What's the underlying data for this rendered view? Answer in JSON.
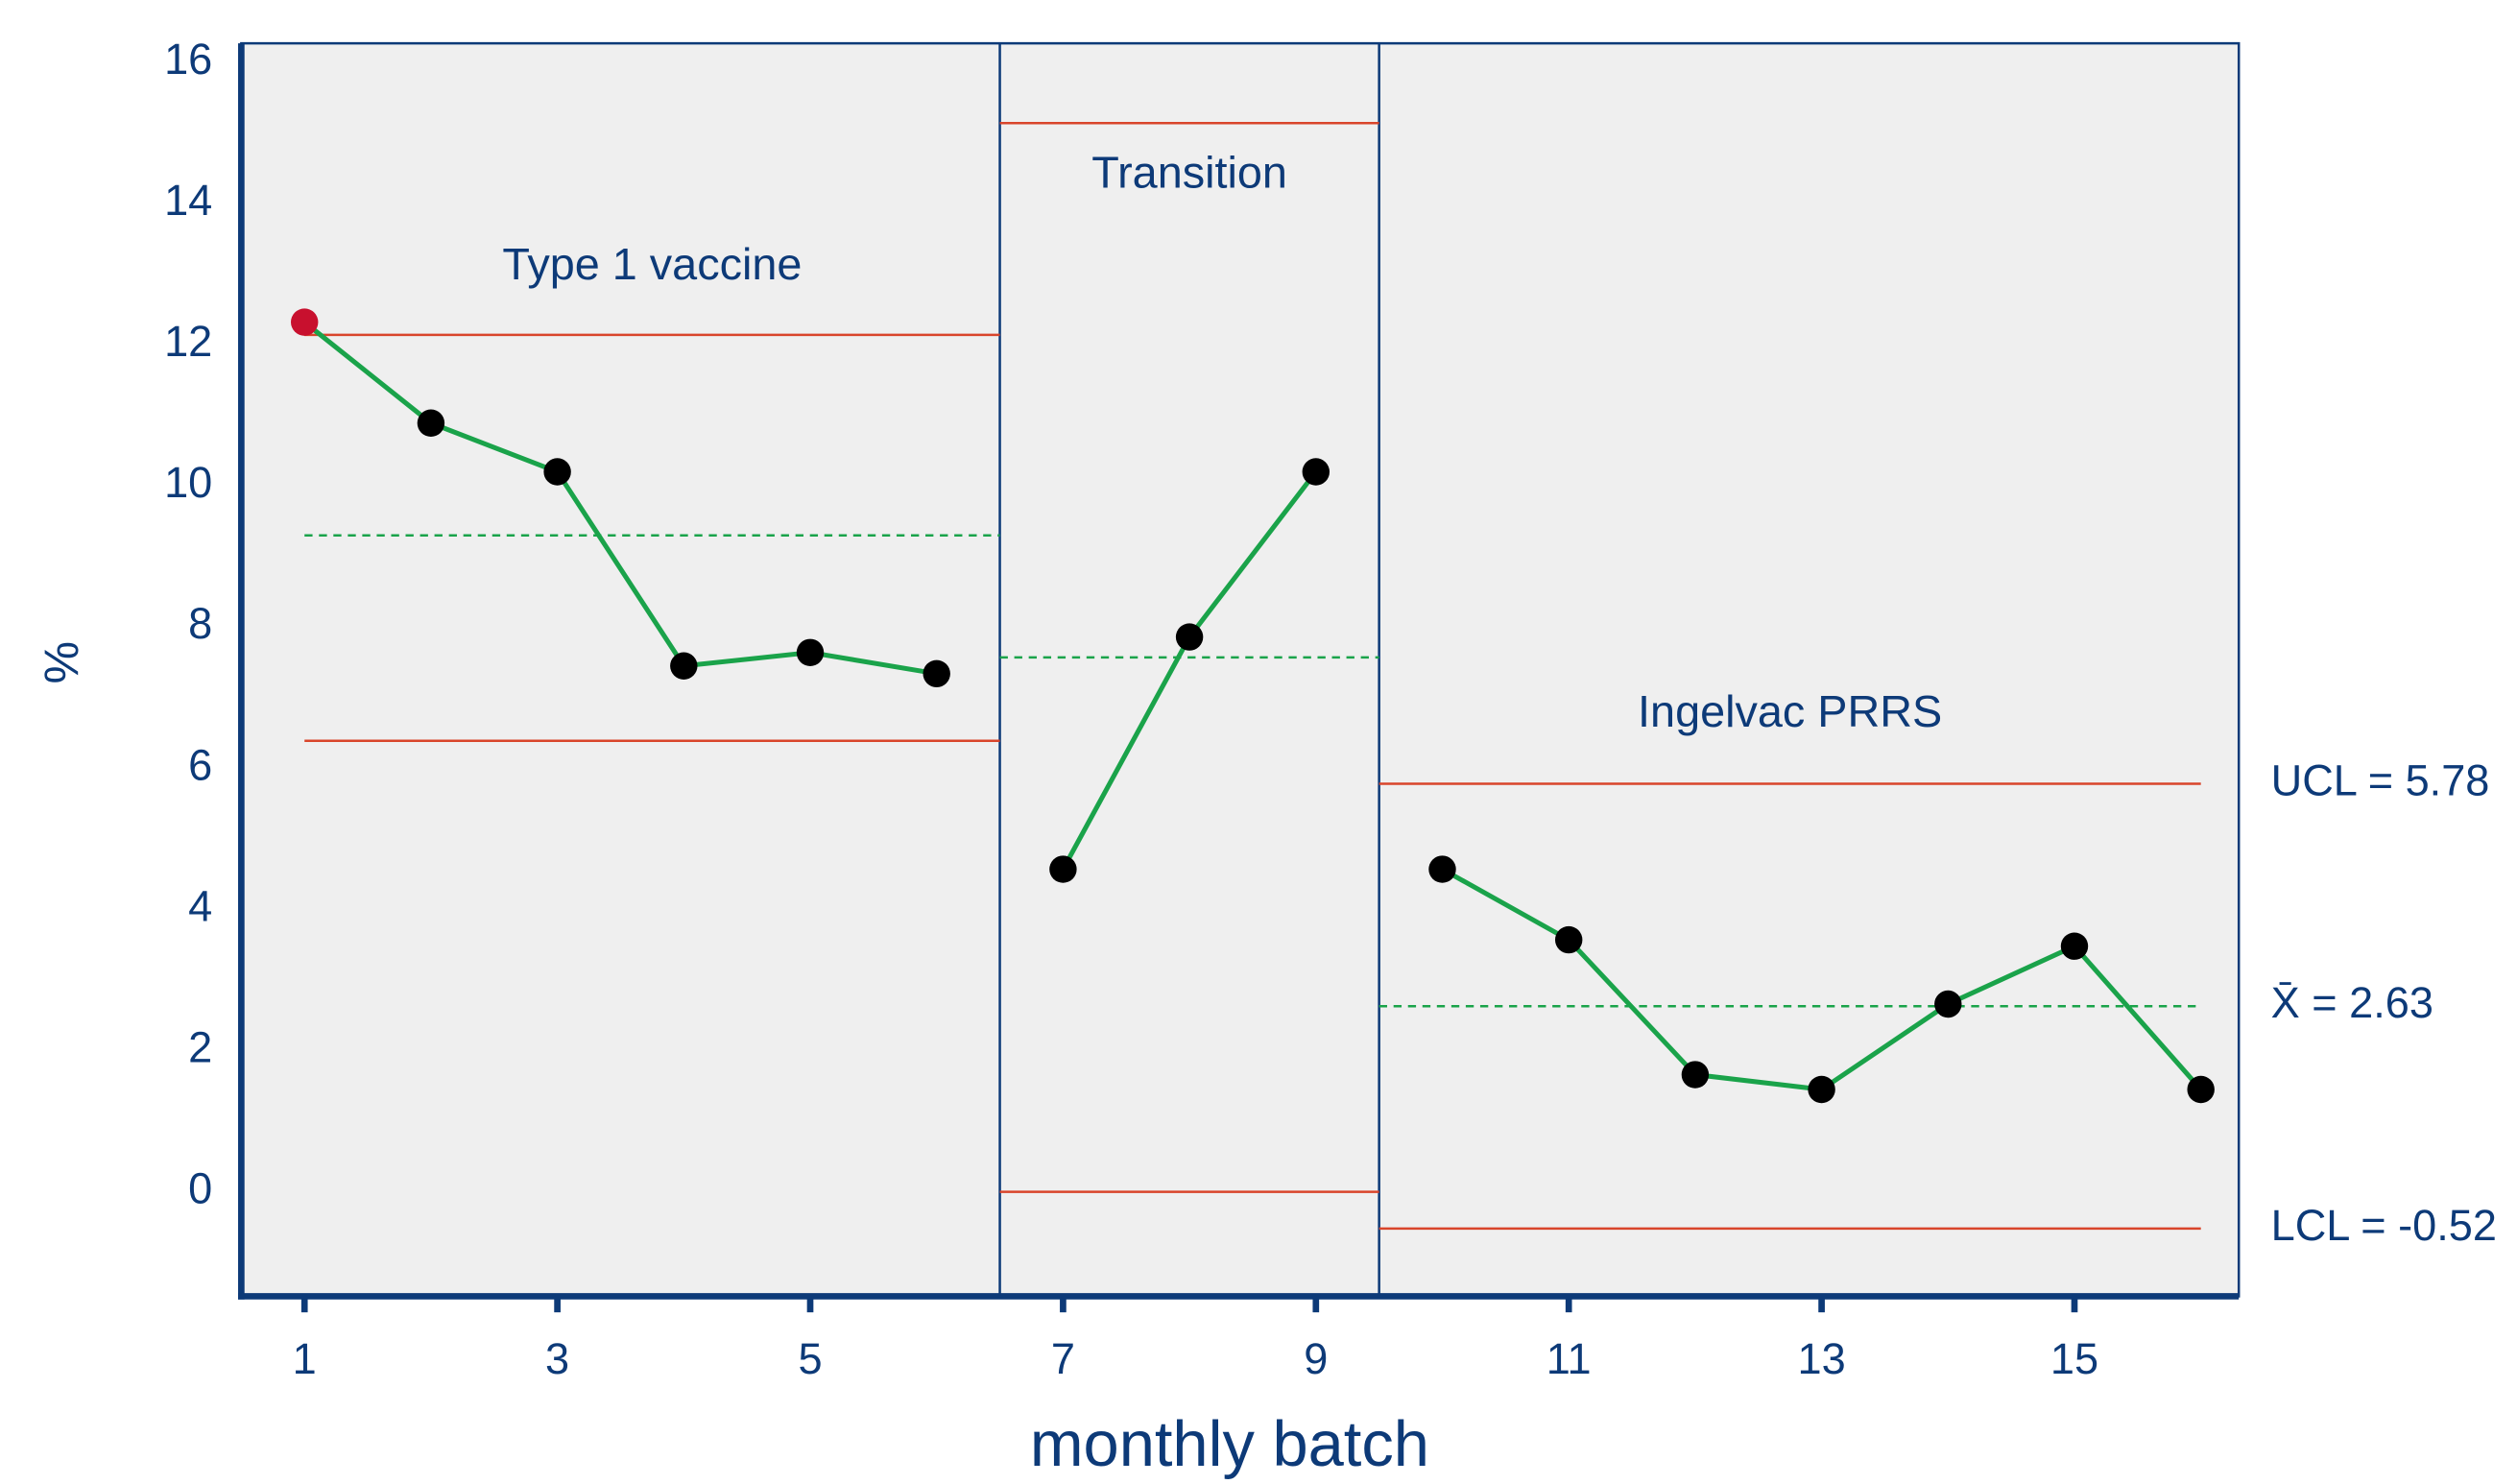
{
  "chart_data": {
    "type": "line",
    "x_label": "monthly batch",
    "y_label": "%",
    "xlim": [
      0.5,
      16.3
    ],
    "ylim": [
      -1.48,
      16.27
    ],
    "xticks": [
      1,
      3,
      5,
      7,
      9,
      11,
      13,
      15
    ],
    "yticks": [
      0,
      2,
      4,
      6,
      8,
      10,
      12,
      14,
      16
    ],
    "dividers": [
      6.5,
      9.5
    ],
    "line_color": "#1aa34a",
    "limit_color": "#d9452b",
    "point_color": "#000000",
    "highlight_color": "#c8102e",
    "phases": [
      {
        "label": "Type 1 vaccine",
        "limits_x": [
          1,
          6.5
        ],
        "x": [
          1,
          2,
          3,
          4,
          5,
          6
        ],
        "values": [
          12.32,
          10.89,
          10.2,
          7.45,
          7.64,
          7.34
        ],
        "highlight": [
          true,
          false,
          false,
          false,
          false,
          false
        ],
        "ucl": 12.14,
        "mean": 9.3,
        "lcl": 6.39
      },
      {
        "label": "Transition",
        "limits_x": [
          6.5,
          9.5
        ],
        "x": [
          7,
          8,
          9
        ],
        "values": [
          4.57,
          7.86,
          10.2
        ],
        "highlight": [
          false,
          false,
          false
        ],
        "ucl": 15.14,
        "mean": 7.57,
        "lcl": 0
      },
      {
        "label": "Ingelvac PRRS",
        "limits_x": [
          9.5,
          16
        ],
        "x": [
          10,
          11,
          12,
          13,
          14,
          15,
          16
        ],
        "values": [
          4.57,
          3.57,
          1.66,
          1.45,
          2.66,
          3.48,
          1.45
        ],
        "highlight": [
          false,
          false,
          false,
          false,
          false,
          false,
          false
        ],
        "ucl": 5.78,
        "mean": 2.63,
        "lcl": -0.52,
        "limit_labels": {
          "ucl": "UCL = 5.78",
          "mean": "X̄ = 2.63",
          "lcl": "LCL = -0.52"
        }
      }
    ]
  }
}
